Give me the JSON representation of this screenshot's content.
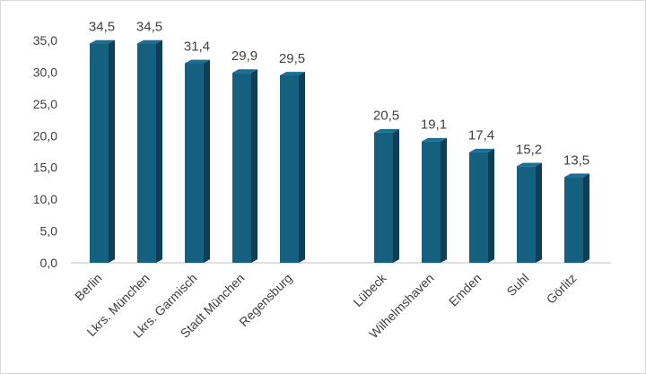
{
  "chart_data": {
    "type": "bar",
    "categories": [
      "Berlin",
      "Lkrs. München",
      "Lkrs. Garmisch",
      "Stadt München",
      "Regensburg",
      "Lübeck",
      "Wilhelmshaven",
      "Emden",
      "Suhl",
      "Görlitz"
    ],
    "values": [
      34.5,
      34.5,
      31.4,
      29.9,
      29.5,
      20.5,
      19.1,
      17.4,
      15.2,
      13.5
    ],
    "data_labels": [
      "34,5",
      "34,5",
      "31,4",
      "29,9",
      "29,5",
      "20,5",
      "19,1",
      "17,4",
      "15,2",
      "13,5"
    ],
    "y_ticks": [
      "0,0",
      "5,0",
      "10,0",
      "15,0",
      "20,0",
      "25,0",
      "30,0",
      "35,0"
    ],
    "ylim": [
      0,
      35
    ],
    "title": "",
    "xlabel": "",
    "ylabel": "",
    "grid": false,
    "bar_style": "3d",
    "group_gap_after_index": 4,
    "colors": {
      "bar_front": "#155f7f",
      "bar_side": "#0e3f56",
      "bar_top": "#1b6f93",
      "axis": "#bfbfbf",
      "text": "#404040"
    }
  }
}
